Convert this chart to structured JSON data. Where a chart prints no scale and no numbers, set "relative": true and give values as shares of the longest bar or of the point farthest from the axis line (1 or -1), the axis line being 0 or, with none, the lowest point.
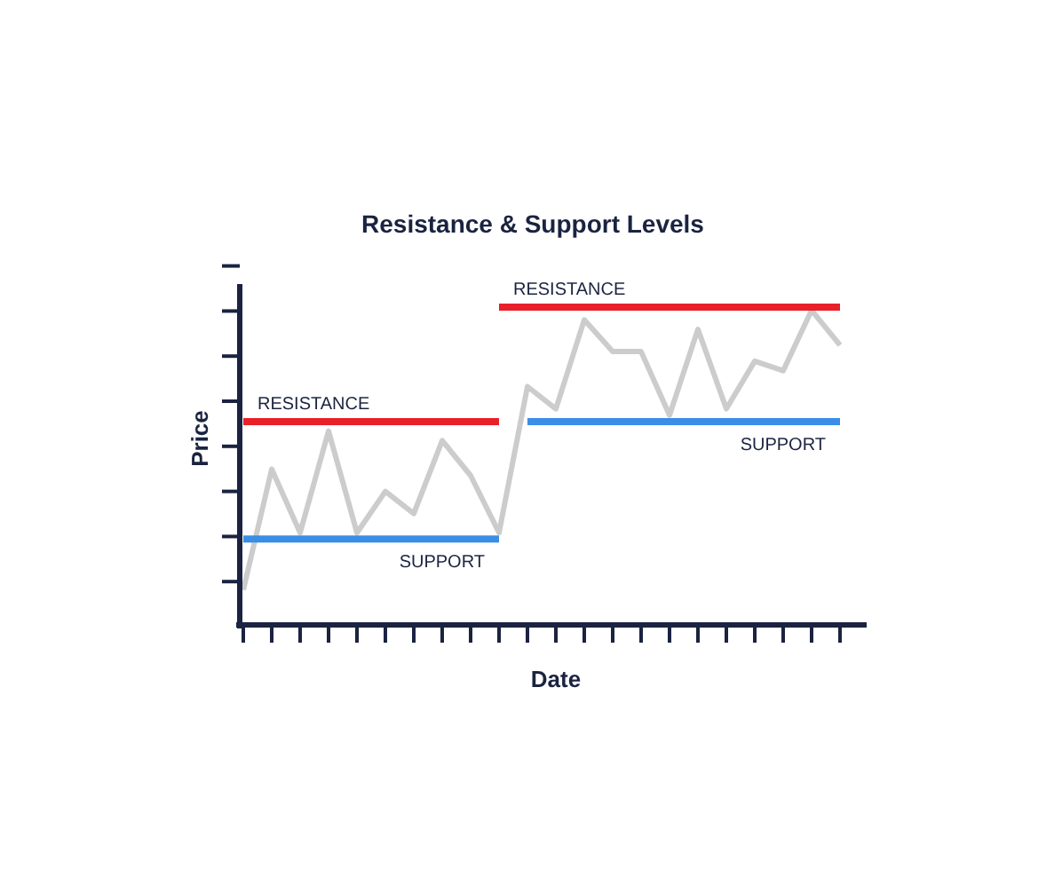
{
  "chart_data": {
    "type": "line",
    "title": "Resistance & Support Levels",
    "xlabel": "Date",
    "ylabel": "Price",
    "relative": true,
    "grid": false,
    "marker": "none",
    "categories": [
      null,
      null,
      null,
      null,
      null,
      null,
      null,
      null,
      null,
      null,
      null,
      null,
      null,
      null,
      null,
      null,
      null,
      null,
      null,
      null,
      null,
      null
    ],
    "series": [
      {
        "color": "#cccccc",
        "values": [
          0.11,
          0.49,
          0.29,
          0.61,
          0.29,
          0.42,
          0.35,
          0.58,
          0.47,
          0.29,
          0.75,
          0.68,
          0.96,
          0.86,
          0.86,
          0.66,
          0.93,
          0.68,
          0.83,
          0.8,
          0.99,
          0.88
        ]
      },
      {
        "name": "RESISTANCE",
        "color": "#e8202a",
        "values": [
          0.64,
          0.64,
          0.64,
          0.64,
          0.64,
          0.64,
          0.64,
          0.64,
          0.64,
          0.64,
          null,
          null,
          null,
          null,
          null,
          null,
          null,
          null,
          null,
          null,
          null,
          null
        ]
      },
      {
        "name": "SUPPORT",
        "color": "#3a8ee6",
        "values": [
          0.27,
          0.27,
          0.27,
          0.27,
          0.27,
          0.27,
          0.27,
          0.27,
          0.27,
          0.27,
          null,
          null,
          null,
          null,
          null,
          null,
          null,
          null,
          null,
          null,
          null,
          null
        ]
      },
      {
        "name": "RESISTANCE",
        "color": "#e8202a",
        "values": [
          null,
          null,
          null,
          null,
          null,
          null,
          null,
          null,
          null,
          1,
          1,
          1,
          1,
          1,
          1,
          1,
          1,
          1,
          1,
          1,
          1,
          1
        ]
      },
      {
        "name": "SUPPORT",
        "color": "#3a8ee6",
        "values": [
          null,
          null,
          null,
          null,
          null,
          null,
          null,
          null,
          null,
          null,
          0.64,
          0.64,
          0.64,
          0.64,
          0.64,
          0.64,
          0.64,
          0.64,
          0.64,
          0.64,
          0.64,
          0.64
        ]
      }
    ]
  }
}
